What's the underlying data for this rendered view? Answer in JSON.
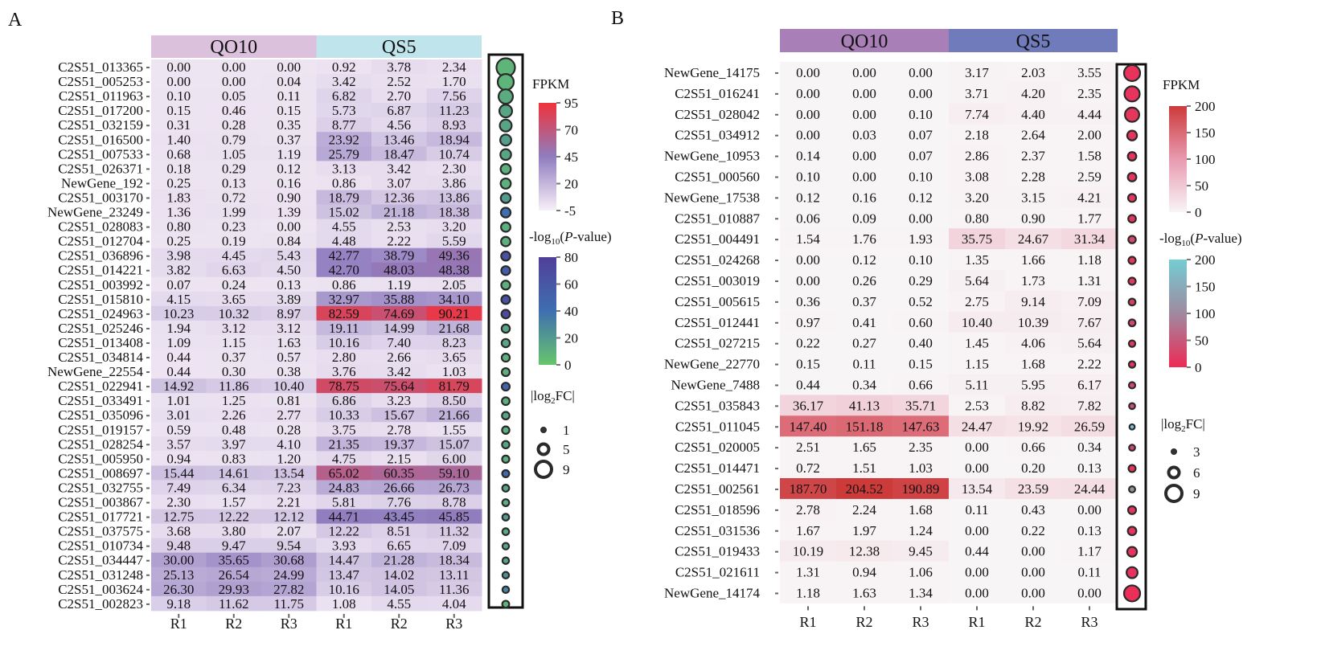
{
  "chart_data": [
    {
      "panel": "A",
      "type": "heatmap",
      "groups": [
        {
          "name": "QO10",
          "color": "#dbc1dc"
        },
        {
          "name": "QS5",
          "color": "#bfe4ec"
        }
      ],
      "columns": [
        "R1",
        "R2",
        "R3",
        "R1",
        "R2",
        "R3"
      ],
      "rows": [
        {
          "gene": "C2S51_013365",
          "values": [
            0.0,
            0.0,
            0.0,
            0.92,
            3.78,
            2.34
          ],
          "log2fc": 9,
          "neglog10p": 8
        },
        {
          "gene": "C2S51_005253",
          "values": [
            0.0,
            0.0,
            0.04,
            3.42,
            2.52,
            1.7
          ],
          "log2fc": 7.5,
          "neglog10p": 8
        },
        {
          "gene": "C2S51_011963",
          "values": [
            0.1,
            0.05,
            0.11,
            6.82,
            2.7,
            7.56
          ],
          "log2fc": 6.5,
          "neglog10p": 12
        },
        {
          "gene": "C2S51_017200",
          "values": [
            0.15,
            0.46,
            0.15,
            5.73,
            6.87,
            11.23
          ],
          "log2fc": 5.5,
          "neglog10p": 15
        },
        {
          "gene": "C2S51_032159",
          "values": [
            0.31,
            0.28,
            0.35,
            8.77,
            4.56,
            8.93
          ],
          "log2fc": 5,
          "neglog10p": 15
        },
        {
          "gene": "C2S51_016500",
          "values": [
            1.4,
            0.79,
            0.37,
            23.92,
            13.46,
            18.94
          ],
          "log2fc": 4.5,
          "neglog10p": 18
        },
        {
          "gene": "C2S51_007533",
          "values": [
            0.68,
            1.05,
            1.19,
            25.79,
            18.47,
            10.74
          ],
          "log2fc": 4.3,
          "neglog10p": 15
        },
        {
          "gene": "C2S51_026371",
          "values": [
            0.18,
            0.29,
            0.12,
            3.13,
            3.42,
            2.3
          ],
          "log2fc": 4,
          "neglog10p": 10
        },
        {
          "gene": "NewGene_192",
          "values": [
            0.25,
            0.13,
            0.16,
            0.86,
            3.07,
            3.86
          ],
          "log2fc": 4,
          "neglog10p": 10
        },
        {
          "gene": "C2S51_003170",
          "values": [
            1.83,
            0.72,
            0.9,
            18.79,
            12.36,
            13.86
          ],
          "log2fc": 3.8,
          "neglog10p": 20
        },
        {
          "gene": "NewGene_23249",
          "values": [
            1.36,
            1.99,
            1.39,
            15.02,
            21.18,
            18.38
          ],
          "log2fc": 3.7,
          "neglog10p": 40
        },
        {
          "gene": "C2S51_028083",
          "values": [
            0.8,
            0.23,
            0.0,
            4.55,
            2.53,
            3.2
          ],
          "log2fc": 3.5,
          "neglog10p": 10
        },
        {
          "gene": "C2S51_012704",
          "values": [
            0.25,
            0.19,
            0.84,
            4.48,
            2.22,
            5.59
          ],
          "log2fc": 3.5,
          "neglog10p": 10
        },
        {
          "gene": "C2S51_036896",
          "values": [
            3.98,
            4.45,
            5.43,
            42.77,
            38.79,
            49.36
          ],
          "log2fc": 3.3,
          "neglog10p": 65
        },
        {
          "gene": "C2S51_014221",
          "values": [
            3.82,
            6.63,
            4.5,
            42.7,
            48.03,
            48.38
          ],
          "log2fc": 3.2,
          "neglog10p": 55
        },
        {
          "gene": "C2S51_003992",
          "values": [
            0.07,
            0.24,
            0.13,
            0.86,
            1.19,
            2.05
          ],
          "log2fc": 3.2,
          "neglog10p": 10
        },
        {
          "gene": "C2S51_015810",
          "values": [
            4.15,
            3.65,
            3.89,
            32.97,
            35.88,
            34.1
          ],
          "log2fc": 3.1,
          "neglog10p": 65
        },
        {
          "gene": "C2S51_024963",
          "values": [
            10.23,
            10.32,
            8.97,
            82.59,
            74.69,
            90.21
          ],
          "log2fc": 3.0,
          "neglog10p": 70
        },
        {
          "gene": "C2S51_025246",
          "values": [
            1.94,
            3.12,
            3.12,
            19.11,
            14.99,
            21.68
          ],
          "log2fc": 2.8,
          "neglog10p": 15
        },
        {
          "gene": "C2S51_013408",
          "values": [
            1.09,
            1.15,
            1.63,
            10.16,
            7.4,
            8.23
          ],
          "log2fc": 2.8,
          "neglog10p": 15
        },
        {
          "gene": "C2S51_034814",
          "values": [
            0.44,
            0.37,
            0.57,
            2.8,
            2.66,
            3.65
          ],
          "log2fc": 2.7,
          "neglog10p": 10
        },
        {
          "gene": "NewGene_22554",
          "values": [
            0.44,
            0.3,
            0.38,
            3.76,
            3.42,
            1.03
          ],
          "log2fc": 2.6,
          "neglog10p": 10
        },
        {
          "gene": "C2S51_022941",
          "values": [
            14.92,
            11.86,
            10.4,
            78.75,
            75.64,
            81.79
          ],
          "log2fc": 2.6,
          "neglog10p": 50
        },
        {
          "gene": "C2S51_033491",
          "values": [
            1.01,
            1.25,
            0.81,
            6.86,
            3.23,
            8.5
          ],
          "log2fc": 2.5,
          "neglog10p": 10
        },
        {
          "gene": "C2S51_035096",
          "values": [
            3.01,
            2.26,
            2.77,
            10.33,
            15.67,
            21.66
          ],
          "log2fc": 2.4,
          "neglog10p": 15
        },
        {
          "gene": "C2S51_019157",
          "values": [
            0.59,
            0.48,
            0.28,
            3.75,
            2.78,
            1.55
          ],
          "log2fc": 2.3,
          "neglog10p": 10
        },
        {
          "gene": "C2S51_028254",
          "values": [
            3.57,
            3.97,
            4.1,
            21.35,
            19.37,
            15.07
          ],
          "log2fc": 2.3,
          "neglog10p": 15
        },
        {
          "gene": "C2S51_005950",
          "values": [
            0.94,
            0.83,
            1.2,
            4.75,
            2.15,
            6.0
          ],
          "log2fc": 2.2,
          "neglog10p": 10
        },
        {
          "gene": "C2S51_008697",
          "values": [
            15.44,
            14.61,
            13.54,
            65.02,
            60.35,
            59.1
          ],
          "log2fc": 2.1,
          "neglog10p": 45
        },
        {
          "gene": "C2S51_032755",
          "values": [
            7.49,
            6.34,
            7.23,
            24.83,
            26.66,
            26.73
          ],
          "log2fc": 2.0,
          "neglog10p": 15
        },
        {
          "gene": "C2S51_003867",
          "values": [
            2.3,
            1.57,
            2.21,
            5.81,
            7.76,
            8.78
          ],
          "log2fc": 2.0,
          "neglog10p": 10
        },
        {
          "gene": "C2S51_017721",
          "values": [
            12.75,
            12.22,
            12.12,
            44.71,
            43.45,
            45.85
          ],
          "log2fc": 1.9,
          "neglog10p": 20
        },
        {
          "gene": "C2S51_037575",
          "values": [
            3.68,
            3.8,
            2.07,
            12.22,
            8.51,
            11.32
          ],
          "log2fc": 1.9,
          "neglog10p": 12
        },
        {
          "gene": "C2S51_010734",
          "values": [
            9.48,
            9.47,
            9.54,
            3.93,
            6.65,
            7.09
          ],
          "log2fc": 1.8,
          "neglog10p": 15
        },
        {
          "gene": "C2S51_034447",
          "values": [
            30.0,
            35.65,
            30.68,
            14.47,
            21.28,
            18.34
          ],
          "log2fc": 1.8,
          "neglog10p": 15
        },
        {
          "gene": "C2S51_031248",
          "values": [
            25.13,
            26.54,
            24.99,
            13.47,
            14.02,
            13.11
          ],
          "log2fc": 1.8,
          "neglog10p": 25
        },
        {
          "gene": "C2S51_003624",
          "values": [
            26.3,
            29.93,
            27.82,
            10.16,
            14.05,
            11.36
          ],
          "log2fc": 1.8,
          "neglog10p": 30
        },
        {
          "gene": "C2S51_002823",
          "values": [
            9.18,
            11.62,
            11.75,
            1.08,
            4.55,
            4.04
          ],
          "log2fc": 2.0,
          "neglog10p": 8
        }
      ],
      "fpkm_legend": {
        "title": "FPKM",
        "ticks": [
          95,
          70,
          45,
          20,
          -5
        ],
        "range": [
          -5,
          95
        ],
        "colors": [
          "#f8f0f8",
          "#8f7dbf",
          "#f0323a"
        ]
      },
      "pvalue_legend": {
        "title_prefix": "-log",
        "title_sub": "10",
        "title_open": "(",
        "title_italic": "P",
        "title_suffix": "-value)",
        "ticks": [
          80,
          60,
          40,
          20,
          0
        ],
        "range": [
          0,
          80
        ],
        "colors": [
          "#67c56d",
          "#3f6fb0",
          "#503f9a"
        ]
      },
      "fc_legend": {
        "title_prefix": "|log",
        "title_sub": "2",
        "title_suffix": "FC|",
        "ticks": [
          1,
          5,
          9
        ]
      }
    },
    {
      "panel": "B",
      "type": "heatmap",
      "groups": [
        {
          "name": "QO10",
          "color": "#a97fb8"
        },
        {
          "name": "QS5",
          "color": "#6f7bba"
        }
      ],
      "columns": [
        "R1",
        "R2",
        "R3",
        "R1",
        "R2",
        "R3"
      ],
      "rows": [
        {
          "gene": "NewGene_14175",
          "values": [
            0.0,
            0.0,
            0.0,
            3.17,
            2.03,
            3.55
          ],
          "log2fc": 9,
          "neglog10p": 8
        },
        {
          "gene": "C2S51_016241",
          "values": [
            0.0,
            0.0,
            0.0,
            3.71,
            4.2,
            2.35
          ],
          "log2fc": 8.5,
          "neglog10p": 10
        },
        {
          "gene": "C2S51_028042",
          "values": [
            0.0,
            0.0,
            0.1,
            7.74,
            4.4,
            4.44
          ],
          "log2fc": 8,
          "neglog10p": 12
        },
        {
          "gene": "C2S51_034912",
          "values": [
            0.0,
            0.03,
            0.07,
            2.18,
            2.64,
            2.0
          ],
          "log2fc": 5.5,
          "neglog10p": 10
        },
        {
          "gene": "NewGene_10953",
          "values": [
            0.14,
            0.0,
            0.07,
            2.86,
            2.37,
            1.58
          ],
          "log2fc": 4.8,
          "neglog10p": 10
        },
        {
          "gene": "C2S51_000560",
          "values": [
            0.1,
            0.0,
            0.1,
            3.08,
            2.28,
            2.59
          ],
          "log2fc": 4.8,
          "neglog10p": 10
        },
        {
          "gene": "NewGene_17538",
          "values": [
            0.12,
            0.16,
            0.12,
            3.2,
            3.15,
            4.21
          ],
          "log2fc": 4.5,
          "neglog10p": 15
        },
        {
          "gene": "C2S51_010887",
          "values": [
            0.06,
            0.09,
            0.0,
            0.8,
            0.9,
            1.77
          ],
          "log2fc": 4.3,
          "neglog10p": 10
        },
        {
          "gene": "C2S51_004491",
          "values": [
            1.54,
            1.76,
            1.93,
            35.75,
            24.67,
            31.34
          ],
          "log2fc": 4.2,
          "neglog10p": 30
        },
        {
          "gene": "C2S51_024268",
          "values": [
            0.0,
            0.12,
            0.1,
            1.35,
            1.66,
            1.18
          ],
          "log2fc": 4.1,
          "neglog10p": 10
        },
        {
          "gene": "C2S51_003019",
          "values": [
            0.0,
            0.26,
            0.29,
            5.64,
            1.73,
            1.31
          ],
          "log2fc": 4.1,
          "neglog10p": 15
        },
        {
          "gene": "C2S51_005615",
          "values": [
            0.36,
            0.37,
            0.52,
            2.75,
            9.14,
            7.09
          ],
          "log2fc": 3.9,
          "neglog10p": 20
        },
        {
          "gene": "C2S51_012441",
          "values": [
            0.97,
            0.41,
            0.6,
            10.4,
            10.39,
            7.67
          ],
          "log2fc": 3.9,
          "neglog10p": 25
        },
        {
          "gene": "C2S51_027215",
          "values": [
            0.22,
            0.27,
            0.4,
            1.45,
            4.06,
            5.64
          ],
          "log2fc": 3.7,
          "neglog10p": 15
        },
        {
          "gene": "NewGene_22770",
          "values": [
            0.15,
            0.11,
            0.15,
            1.15,
            1.68,
            2.22
          ],
          "log2fc": 3.7,
          "neglog10p": 10
        },
        {
          "gene": "NewGene_7488",
          "values": [
            0.44,
            0.34,
            0.66,
            5.11,
            5.95,
            6.17
          ],
          "log2fc": 3.6,
          "neglog10p": 30
        },
        {
          "gene": "C2S51_035843",
          "values": [
            36.17,
            41.13,
            35.71,
            2.53,
            8.82,
            7.82
          ],
          "log2fc": 3.4,
          "neglog10p": 40
        },
        {
          "gene": "C2S51_011045",
          "values": [
            147.4,
            151.18,
            147.63,
            24.47,
            19.92,
            26.59
          ],
          "log2fc": 3.0,
          "neglog10p": 190
        },
        {
          "gene": "C2S51_020005",
          "values": [
            2.51,
            1.65,
            2.35,
            0.0,
            0.66,
            0.34
          ],
          "log2fc": 3.4,
          "neglog10p": 30
        },
        {
          "gene": "C2S51_014471",
          "values": [
            0.72,
            1.51,
            1.03,
            0.0,
            0.2,
            0.13
          ],
          "log2fc": 4.0,
          "neglog10p": 10
        },
        {
          "gene": "C2S51_002561",
          "values": [
            187.7,
            204.52,
            190.89,
            13.54,
            23.59,
            24.44
          ],
          "log2fc": 3.5,
          "neglog10p": 110
        },
        {
          "gene": "C2S51_018596",
          "values": [
            2.78,
            2.24,
            1.68,
            0.11,
            0.43,
            0.0
          ],
          "log2fc": 4.5,
          "neglog10p": 10
        },
        {
          "gene": "C2S51_031536",
          "values": [
            1.67,
            1.97,
            1.24,
            0.0,
            0.22,
            0.13
          ],
          "log2fc": 4.8,
          "neglog10p": 10
        },
        {
          "gene": "C2S51_019433",
          "values": [
            10.19,
            12.38,
            9.45,
            0.44,
            0.0,
            1.17
          ],
          "log2fc": 5.5,
          "neglog10p": 10
        },
        {
          "gene": "C2S51_021611",
          "values": [
            1.31,
            0.94,
            1.06,
            0.0,
            0.0,
            0.11
          ],
          "log2fc": 6.2,
          "neglog10p": 8
        },
        {
          "gene": "NewGene_14174",
          "values": [
            1.18,
            1.63,
            1.34,
            0.0,
            0.0,
            0.0
          ],
          "log2fc": 9,
          "neglog10p": 5
        }
      ],
      "fpkm_legend": {
        "title": "FPKM",
        "ticks": [
          200,
          150,
          100,
          50,
          0
        ],
        "range": [
          0,
          200
        ],
        "colors": [
          "#f8f5f6",
          "#e89ab0",
          "#cc3a3a"
        ]
      },
      "pvalue_legend": {
        "title_prefix": "-log",
        "title_sub": "10",
        "title_open": "(",
        "title_italic": "P",
        "title_suffix": "-value)",
        "ticks": [
          200,
          150,
          100,
          50,
          0
        ],
        "range": [
          0,
          200
        ],
        "colors": [
          "#ee2a55",
          "#9f8aa0",
          "#74cdd2"
        ]
      },
      "fc_legend": {
        "title_prefix": "|log",
        "title_sub": "2",
        "title_suffix": "FC|",
        "ticks": [
          3,
          6,
          9
        ]
      }
    }
  ]
}
